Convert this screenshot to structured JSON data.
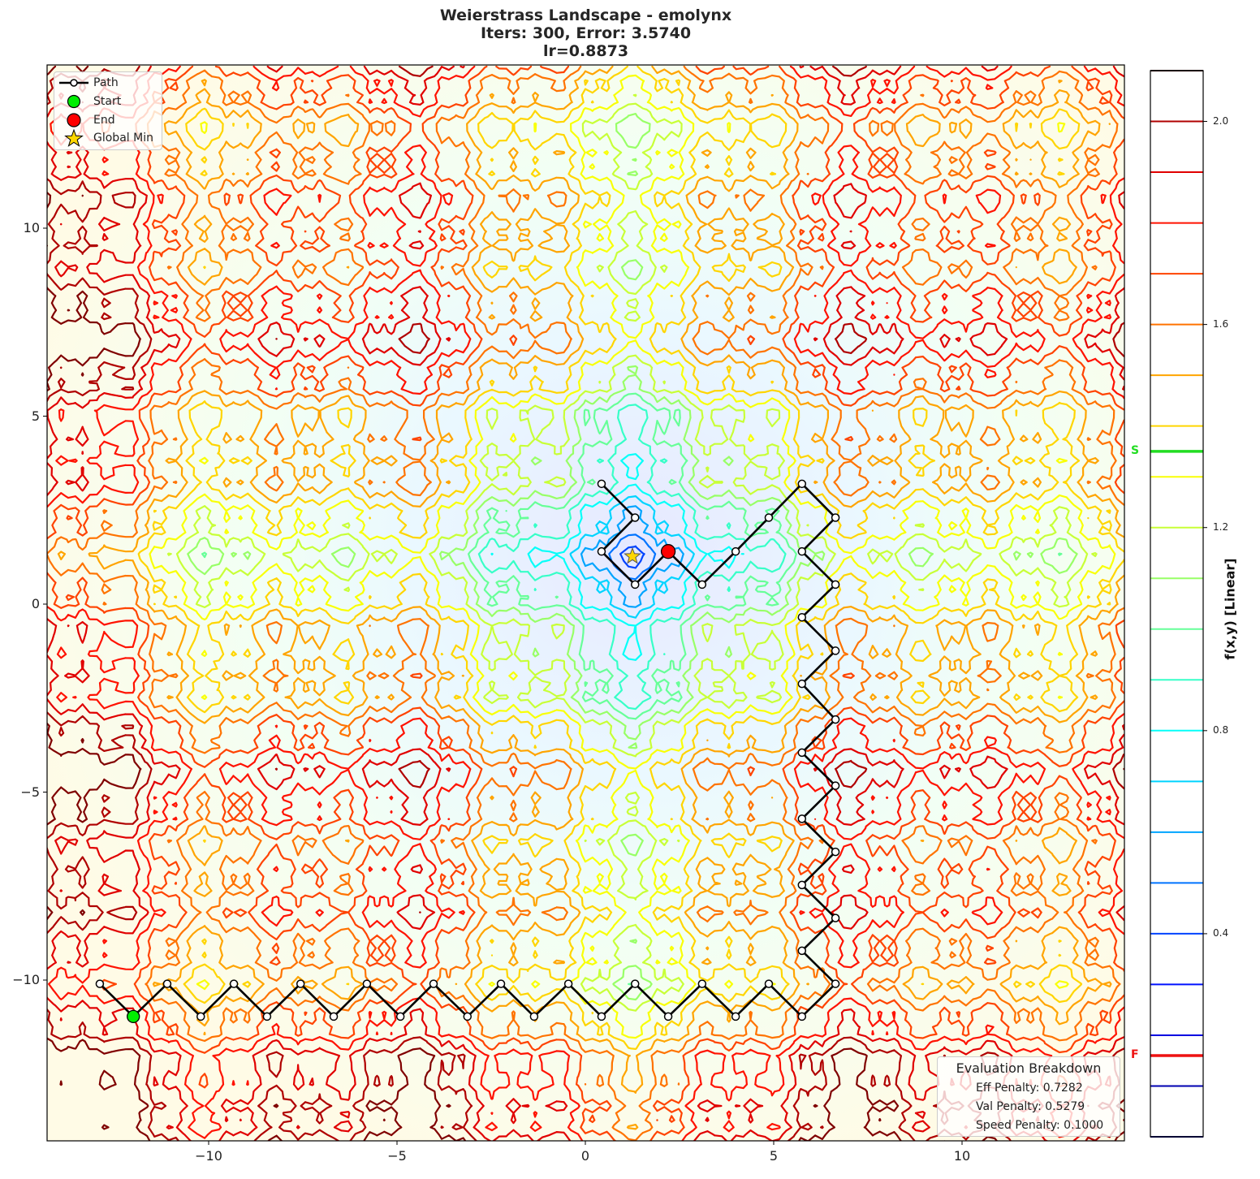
{
  "title": {
    "line1": "Weierstrass Landscape - emolynx",
    "line2": "Iters: 300, Error: 3.5740",
    "line3": "lr=0.8873"
  },
  "legend": {
    "items": [
      {
        "label": "Path",
        "icon": "line-with-circle-marker"
      },
      {
        "label": "Start",
        "icon": "green-circle",
        "color": "#00ee00"
      },
      {
        "label": "End",
        "icon": "red-circle",
        "color": "#ff0000"
      },
      {
        "label": "Global Min",
        "icon": "gold-star",
        "color": "#ffd700"
      }
    ]
  },
  "evaluation": {
    "title": "Evaluation Breakdown",
    "rows": [
      "Eff Penalty: 0.7282",
      "Val Penalty: 0.5279",
      "Speed Penalty: 0.1000"
    ]
  },
  "axes": {
    "x_ticks": [
      "−10",
      "−5",
      "0",
      "5",
      "10"
    ],
    "y_ticks": [
      "10",
      "5",
      "0",
      "−5",
      "−10"
    ]
  },
  "colorbar": {
    "label": "f(x,y) [Linear]",
    "ticks": [
      "2.0",
      "1.6",
      "1.2",
      "0.8",
      "0.4"
    ],
    "start_marker": {
      "label": "S",
      "value": 1.35,
      "color": "#22dd22"
    },
    "final_marker": {
      "label": "F",
      "value": 0.16,
      "color": "#ee1111"
    }
  },
  "chart_data": {
    "type": "contour",
    "title": "Weierstrass Landscape - emolynx\nIters: 300, Error: 3.5740\nlr=0.8873",
    "xlabel": "",
    "ylabel": "",
    "xlim": [
      -14.3,
      14.3
    ],
    "ylim": [
      -14.3,
      14.3
    ],
    "x_ticks": [
      -10,
      -5,
      0,
      5,
      10
    ],
    "y_ticks": [
      -10,
      -5,
      0,
      5,
      10
    ],
    "grid": false,
    "colormap": "jet",
    "colorbar": {
      "label": "f(x,y) [Linear]",
      "range": [
        0.0,
        2.1
      ],
      "ticks": [
        0.4,
        0.8,
        1.2,
        1.6,
        2.0
      ],
      "levels": [
        0.1,
        0.2,
        0.3,
        0.4,
        0.5,
        0.6,
        0.7,
        0.8,
        0.9,
        1.0,
        1.1,
        1.2,
        1.3,
        1.4,
        1.5,
        1.6,
        1.7,
        1.8,
        1.9,
        2.0,
        2.1
      ]
    },
    "series": [
      {
        "name": "Path",
        "points": [
          [
            -12.0,
            -10.97
          ],
          [
            -12.89,
            -10.1
          ],
          [
            -12.0,
            -10.97
          ],
          [
            -11.1,
            -10.1
          ],
          [
            -10.21,
            -10.97
          ],
          [
            -9.33,
            -10.1
          ],
          [
            -8.45,
            -10.97
          ],
          [
            -7.56,
            -10.1
          ],
          [
            -6.68,
            -10.97
          ],
          [
            -5.8,
            -10.1
          ],
          [
            -4.91,
            -10.97
          ],
          [
            -4.03,
            -10.1
          ],
          [
            -3.13,
            -10.97
          ],
          [
            -2.24,
            -10.1
          ],
          [
            -1.36,
            -10.97
          ],
          [
            -0.45,
            -10.1
          ],
          [
            0.43,
            -10.97
          ],
          [
            1.32,
            -10.1
          ],
          [
            2.2,
            -10.97
          ],
          [
            3.1,
            -10.1
          ],
          [
            3.99,
            -10.97
          ],
          [
            4.87,
            -10.1
          ],
          [
            5.75,
            -10.97
          ],
          [
            6.64,
            -10.1
          ],
          [
            5.75,
            -9.22
          ],
          [
            6.64,
            -8.35
          ],
          [
            5.75,
            -7.47
          ],
          [
            6.64,
            -6.59
          ],
          [
            5.75,
            -5.71
          ],
          [
            6.64,
            -4.83
          ],
          [
            5.75,
            -3.95
          ],
          [
            6.64,
            -3.07
          ],
          [
            5.75,
            -2.12
          ],
          [
            6.64,
            -1.24
          ],
          [
            5.75,
            -0.35
          ],
          [
            6.64,
            0.52
          ],
          [
            5.75,
            1.4
          ],
          [
            6.64,
            2.3
          ],
          [
            5.75,
            3.2
          ],
          [
            4.87,
            2.3
          ],
          [
            3.99,
            1.4
          ],
          [
            3.1,
            0.52
          ],
          [
            2.2,
            1.4
          ],
          [
            1.32,
            0.52
          ],
          [
            0.43,
            1.4
          ],
          [
            1.32,
            2.3
          ],
          [
            0.43,
            3.2
          ],
          [
            1.32,
            2.3
          ],
          [
            0.43,
            1.4
          ],
          [
            1.32,
            0.52
          ],
          [
            2.2,
            1.4
          ]
        ]
      },
      {
        "name": "Start",
        "points": [
          [
            -12.0,
            -10.97
          ]
        ]
      },
      {
        "name": "End",
        "points": [
          [
            2.2,
            1.4
          ]
        ]
      },
      {
        "name": "Global Min",
        "points": [
          [
            1.25,
            1.27
          ]
        ]
      }
    ],
    "annotations": [
      {
        "text": "S",
        "colorbar_value": 1.35,
        "color": "#22dd22"
      },
      {
        "text": "F",
        "colorbar_value": 0.16,
        "color": "#ee1111"
      },
      {
        "text": "Evaluation Breakdown",
        "lines": [
          "Eff Penalty: 0.7282",
          "Val Penalty: 0.5279",
          "Speed Penalty: 0.1000"
        ],
        "position": "lower right"
      }
    ],
    "legend_position": "upper left"
  }
}
